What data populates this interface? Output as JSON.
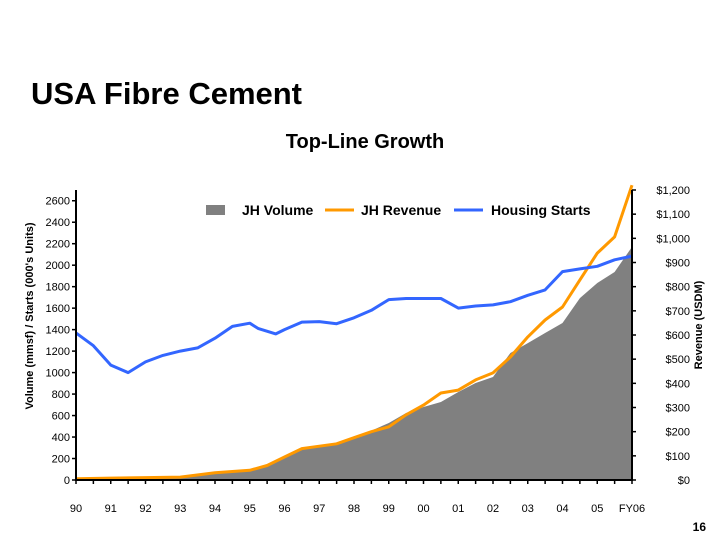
{
  "slide": {
    "title": "USA Fibre Cement",
    "page_number": "16"
  },
  "chart_data": {
    "type": "area+line",
    "title": "Top-Line Growth",
    "ylabel": "Volume (mmsf)  /  Starts (000's Units)",
    "y2label": "Revenue (USDM)",
    "ylim": [
      0,
      2700
    ],
    "y2lim": [
      0,
      1200
    ],
    "xlim": [
      1990,
      2006
    ],
    "yticks": [
      0,
      200,
      400,
      600,
      800,
      1000,
      1200,
      1400,
      1600,
      1800,
      2000,
      2200,
      2400,
      2600
    ],
    "y2ticks": [
      "$0",
      "$100",
      "$200",
      "$300",
      "$400",
      "$500",
      "$600",
      "$700",
      "$800",
      "$900",
      "$1,000",
      "$1,100",
      "$1,200"
    ],
    "xticks": [
      "90",
      "91",
      "92",
      "93",
      "94",
      "95",
      "96",
      "97",
      "98",
      "99",
      "00",
      "01",
      "02",
      "03",
      "04",
      "05",
      "FY06"
    ],
    "legend_position": "top",
    "grid": false,
    "series": [
      {
        "name": "JH Volume",
        "type": "area",
        "axis": "left",
        "color": "#808080",
        "x": [
          1990,
          1991,
          1992,
          1993,
          1994,
          1995,
          1995.5,
          1996,
          1996.5,
          1997,
          1997.5,
          1998,
          1998.5,
          1999,
          1999.5,
          2000,
          2000.5,
          2001,
          2001.5,
          2002,
          2002.5,
          2003,
          2003.5,
          2004,
          2004.5,
          2005,
          2005.5,
          2006
        ],
        "y": [
          5,
          10,
          15,
          20,
          60,
          90,
          130,
          220,
          290,
          320,
          340,
          390,
          460,
          531,
          624,
          680,
          726,
          819,
          903,
          959,
          1182,
          1275,
          1369,
          1462,
          1694,
          1834,
          1937,
          2170
        ]
      },
      {
        "name": "JH Revenue",
        "type": "line",
        "axis": "right",
        "color": "#FF9900",
        "x": [
          1990,
          1991,
          1992,
          1993,
          1994,
          1995,
          1995.5,
          1996,
          1996.5,
          1997,
          1997.5,
          1998,
          1998.5,
          1999,
          1999.5,
          2000,
          2000.5,
          2001,
          2001.5,
          2002,
          2002.5,
          2003,
          2003.5,
          2004,
          2004.5,
          2005,
          2005.5,
          2006
        ],
        "y": [
          5,
          8,
          10,
          12,
          30,
          40,
          60,
          95,
          130,
          140,
          150,
          175,
          200,
          220,
          270,
          310,
          360,
          372,
          414,
          443,
          509,
          592,
          662,
          716,
          828,
          939,
          1006,
          1220
        ]
      },
      {
        "name": "Housing Starts",
        "type": "line",
        "axis": "left",
        "color": "#3366FF",
        "x": [
          1990,
          1990.5,
          1991,
          1991.5,
          1992,
          1992.5,
          1993,
          1993.5,
          1994,
          1994.5,
          1995,
          1995.25,
          1995.75,
          1996,
          1996.5,
          1997,
          1997.5,
          1998,
          1998.5,
          1999,
          1999.5,
          2000,
          2000.5,
          2001,
          2001.5,
          2002,
          2002.5,
          2003,
          2003.5,
          2004,
          2004.5,
          2005,
          2005.5,
          2006
        ],
        "y": [
          1370,
          1250,
          1070,
          1000,
          1100,
          1160,
          1200,
          1230,
          1320,
          1430,
          1460,
          1410,
          1360,
          1400,
          1470,
          1475,
          1455,
          1510,
          1580,
          1680,
          1690,
          1690,
          1690,
          1600,
          1620,
          1630,
          1660,
          1720,
          1770,
          1940,
          1965,
          1990,
          2050,
          2085
        ]
      }
    ]
  }
}
